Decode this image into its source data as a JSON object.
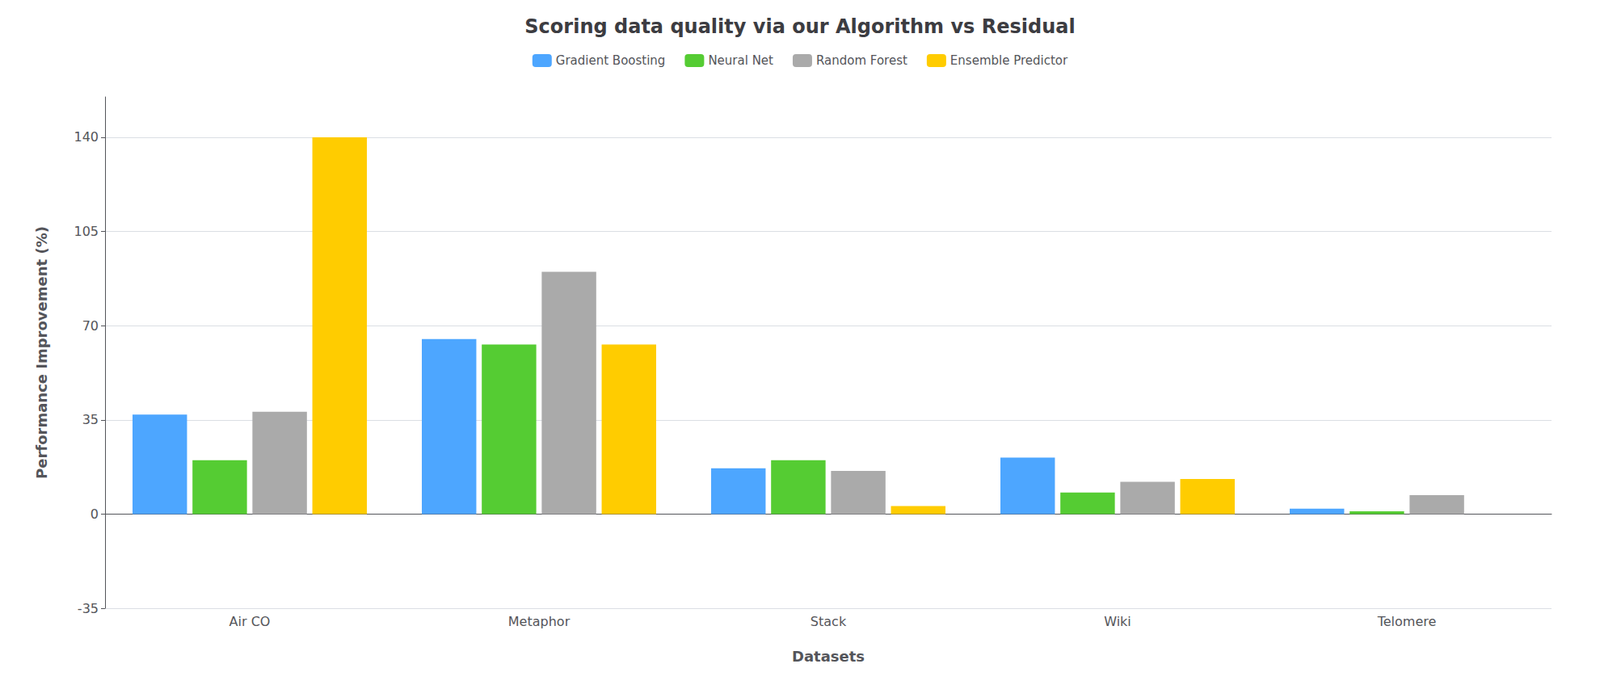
{
  "chart_data": {
    "type": "bar",
    "title": "Scoring data quality via our Algorithm vs Residual",
    "xlabel": "Datasets",
    "ylabel": "Performance Improvement (%)",
    "categories": [
      "Air CO",
      "Metaphor",
      "Stack",
      "Wiki",
      "Telomere"
    ],
    "series": [
      {
        "name": "Gradient Boosting",
        "color": "#4da6ff",
        "values": [
          37,
          65,
          17,
          21,
          2
        ]
      },
      {
        "name": "Neural Net",
        "color": "#55cc33",
        "values": [
          20,
          63,
          20,
          8,
          1
        ]
      },
      {
        "name": "Random Forest",
        "color": "#aaaaaa",
        "values": [
          38,
          90,
          16,
          12,
          7
        ]
      },
      {
        "name": "Ensemble Predictor",
        "color": "#ffcc00",
        "values": [
          140,
          63,
          3,
          13,
          0
        ]
      }
    ],
    "ylim": [
      -35,
      155
    ],
    "yticks": [
      -35,
      0,
      35,
      70,
      105,
      140
    ],
    "grid": true,
    "legend": "top"
  }
}
